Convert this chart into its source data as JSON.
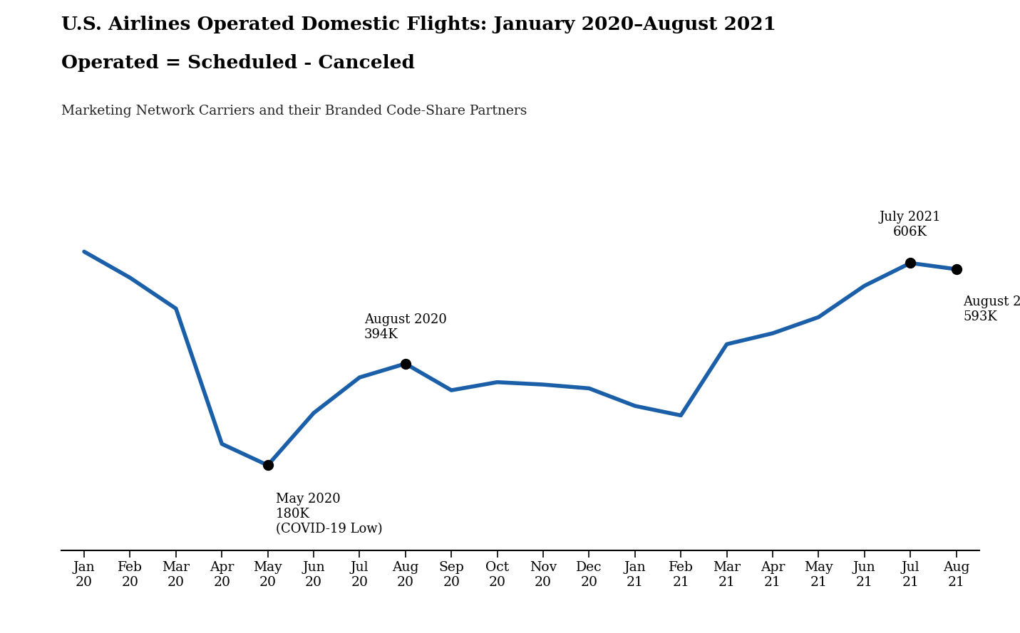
{
  "title_line1": "U.S. Airlines Operated Domestic Flights: January 2020–August 2021",
  "title_line2": "Operated = Scheduled - Canceled",
  "subtitle": "Marketing Network Carriers and their Branded Code-Share Partners",
  "line_color": "#1a5fa8",
  "line_width": 4.0,
  "background_color": "#ffffff",
  "months": [
    "Jan\n20",
    "Feb\n20",
    "Mar\n20",
    "Apr\n20",
    "May\n20",
    "Jun\n20",
    "Jul\n20",
    "Aug\n20",
    "Sep\n20",
    "Oct\n20",
    "Nov\n20",
    "Dec\n20",
    "Jan\n21",
    "Feb\n21",
    "Mar\n21",
    "Apr\n21",
    "May\n21",
    "Jun\n21",
    "Jul\n21",
    "Aug\n21"
  ],
  "values": [
    630,
    575,
    510,
    225,
    180,
    290,
    365,
    394,
    338,
    355,
    350,
    342,
    305,
    285,
    435,
    458,
    492,
    558,
    606,
    593
  ],
  "annotated_indices": [
    4,
    7,
    18,
    19
  ],
  "ylim_min": 0,
  "ylim_max": 720,
  "title_fontsize": 19,
  "subtitle_fontsize": 13.5,
  "tick_fontsize": 13.5,
  "annotation_fontsize": 13
}
